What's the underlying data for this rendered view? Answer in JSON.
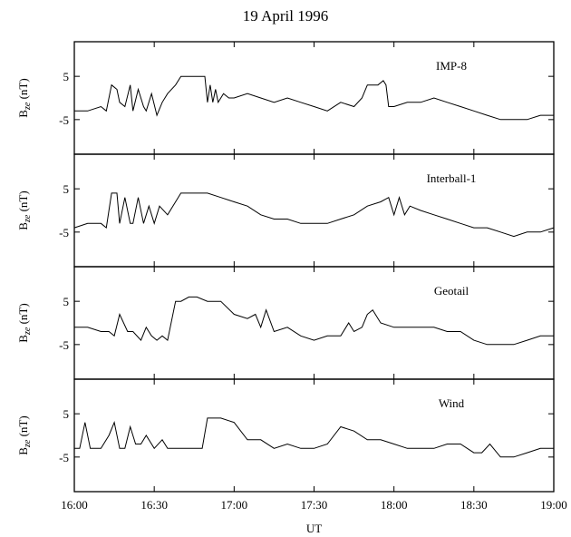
{
  "title": "19 April 1996",
  "xlabel": "UT",
  "chart_data": [
    {
      "type": "line",
      "name": "IMP-8",
      "ylabel": "B_ze (nT)",
      "ylim": [
        -13,
        13
      ],
      "yticks": [
        5,
        -5
      ],
      "xlim": [
        "16:00",
        "19:00"
      ],
      "series": [
        {
          "name": "IMP-8",
          "x": [
            "16:00",
            "16:05",
            "16:10",
            "16:12",
            "16:14",
            "16:16",
            "16:17",
            "16:19",
            "16:21",
            "16:22",
            "16:24",
            "16:26",
            "16:27",
            "16:29",
            "16:31",
            "16:33",
            "16:35",
            "16:38",
            "16:40",
            "16:43",
            "16:46",
            "16:49",
            "16:50",
            "16:51",
            "16:52",
            "16:53",
            "16:54",
            "16:56",
            "16:58",
            "17:00",
            "17:05",
            "17:10",
            "17:15",
            "17:20",
            "17:25",
            "17:30",
            "17:35",
            "17:40",
            "17:45",
            "17:48",
            "17:50",
            "17:52",
            "17:54",
            "17:56",
            "17:57",
            "17:58",
            "18:00",
            "18:05",
            "18:10",
            "18:15",
            "18:20",
            "18:25",
            "18:30",
            "18:35",
            "18:40",
            "18:45",
            "18:50",
            "18:55",
            "19:00"
          ],
          "values": [
            -3,
            -3,
            -2,
            -3,
            3,
            2,
            -1,
            -2,
            3,
            -3,
            2,
            -2,
            -3,
            1,
            -4,
            -1,
            1,
            3,
            5,
            5,
            5,
            5,
            -1,
            3,
            -1,
            2,
            -1,
            1,
            0,
            0,
            1,
            0,
            -1,
            0,
            -1,
            -2,
            -3,
            -1,
            -2,
            0,
            3,
            3,
            3,
            4,
            3,
            -2,
            -2,
            -1,
            -1,
            0,
            -1,
            -2,
            -3,
            -4,
            -5,
            -5,
            -5,
            -4,
            -4
          ]
        }
      ]
    },
    {
      "type": "line",
      "name": "Interball-1",
      "ylabel": "B_ze (nT)",
      "ylim": [
        -13,
        13
      ],
      "yticks": [
        5,
        -5
      ],
      "xlim": [
        "16:00",
        "19:00"
      ],
      "series": [
        {
          "name": "Interball-1",
          "x": [
            "16:00",
            "16:05",
            "16:10",
            "16:12",
            "16:14",
            "16:16",
            "16:17",
            "16:19",
            "16:21",
            "16:22",
            "16:24",
            "16:26",
            "16:28",
            "16:30",
            "16:32",
            "16:35",
            "16:38",
            "16:40",
            "16:45",
            "16:50",
            "16:55",
            "17:00",
            "17:05",
            "17:10",
            "17:15",
            "17:20",
            "17:25",
            "17:30",
            "17:35",
            "17:40",
            "17:45",
            "17:50",
            "17:55",
            "17:58",
            "18:00",
            "18:02",
            "18:04",
            "18:06",
            "18:10",
            "18:15",
            "18:20",
            "18:25",
            "18:30",
            "18:35",
            "18:40",
            "18:45",
            "18:50",
            "18:55",
            "19:00"
          ],
          "values": [
            -4,
            -3,
            -3,
            -4,
            4,
            4,
            -3,
            3,
            -3,
            -3,
            3,
            -3,
            1,
            -3,
            1,
            -1,
            2,
            4,
            4,
            4,
            3,
            2,
            1,
            -1,
            -2,
            -2,
            -3,
            -3,
            -3,
            -2,
            -1,
            1,
            2,
            3,
            -1,
            3,
            -1,
            1,
            0,
            -1,
            -2,
            -3,
            -4,
            -4,
            -5,
            -6,
            -5,
            -5,
            -4
          ]
        }
      ]
    },
    {
      "type": "line",
      "name": "Geotail",
      "ylabel": "B_ze (nT)",
      "ylim": [
        -13,
        13
      ],
      "yticks": [
        5,
        -5
      ],
      "xlim": [
        "16:00",
        "19:00"
      ],
      "series": [
        {
          "name": "Geotail",
          "x": [
            "16:00",
            "16:05",
            "16:10",
            "16:13",
            "16:15",
            "16:17",
            "16:20",
            "16:22",
            "16:25",
            "16:27",
            "16:29",
            "16:31",
            "16:33",
            "16:35",
            "16:38",
            "16:40",
            "16:43",
            "16:46",
            "16:50",
            "16:55",
            "17:00",
            "17:05",
            "17:08",
            "17:10",
            "17:12",
            "17:15",
            "17:20",
            "17:25",
            "17:30",
            "17:35",
            "17:40",
            "17:43",
            "17:45",
            "17:48",
            "17:50",
            "17:52",
            "17:55",
            "18:00",
            "18:05",
            "18:10",
            "18:15",
            "18:20",
            "18:25",
            "18:30",
            "18:35",
            "18:40",
            "18:45",
            "18:50",
            "18:55",
            "19:00"
          ],
          "values": [
            -1,
            -1,
            -2,
            -2,
            -3,
            2,
            -2,
            -2,
            -4,
            -1,
            -3,
            -4,
            -3,
            -4,
            5,
            5,
            6,
            6,
            5,
            5,
            2,
            1,
            2,
            -1,
            3,
            -2,
            -1,
            -3,
            -4,
            -3,
            -3,
            0,
            -2,
            -1,
            2,
            3,
            0,
            -1,
            -1,
            -1,
            -1,
            -2,
            -2,
            -4,
            -5,
            -5,
            -5,
            -4,
            -3,
            -3
          ]
        }
      ]
    },
    {
      "type": "line",
      "name": "Wind",
      "ylabel": "B_ze (nT)",
      "ylim": [
        -13,
        13
      ],
      "yticks": [
        5,
        -5
      ],
      "xlim": [
        "16:00",
        "19:00"
      ],
      "series": [
        {
          "name": "Wind",
          "x": [
            "16:00",
            "16:02",
            "16:04",
            "16:06",
            "16:08",
            "16:10",
            "16:13",
            "16:15",
            "16:17",
            "16:19",
            "16:21",
            "16:23",
            "16:25",
            "16:27",
            "16:30",
            "16:33",
            "16:35",
            "16:38",
            "16:40",
            "16:42",
            "16:45",
            "16:48",
            "16:50",
            "16:55",
            "17:00",
            "17:05",
            "17:10",
            "17:15",
            "17:20",
            "17:25",
            "17:30",
            "17:35",
            "17:40",
            "17:45",
            "17:50",
            "17:55",
            "18:00",
            "18:05",
            "18:10",
            "18:15",
            "18:20",
            "18:25",
            "18:30",
            "18:33",
            "18:36",
            "18:40",
            "18:45",
            "18:50",
            "18:55",
            "19:00"
          ],
          "values": [
            -3,
            -3,
            3,
            -3,
            -3,
            -3,
            0,
            3,
            -3,
            -3,
            2,
            -2,
            -2,
            0,
            -3,
            -1,
            -3,
            -3,
            -3,
            -3,
            -3,
            -3,
            4,
            4,
            3,
            -1,
            -1,
            -3,
            -2,
            -3,
            -3,
            -2,
            2,
            1,
            -1,
            -1,
            -2,
            -3,
            -3,
            -3,
            -2,
            -2,
            -4,
            -4,
            -2,
            -5,
            -5,
            -4,
            -3,
            -3
          ]
        }
      ]
    }
  ]
}
